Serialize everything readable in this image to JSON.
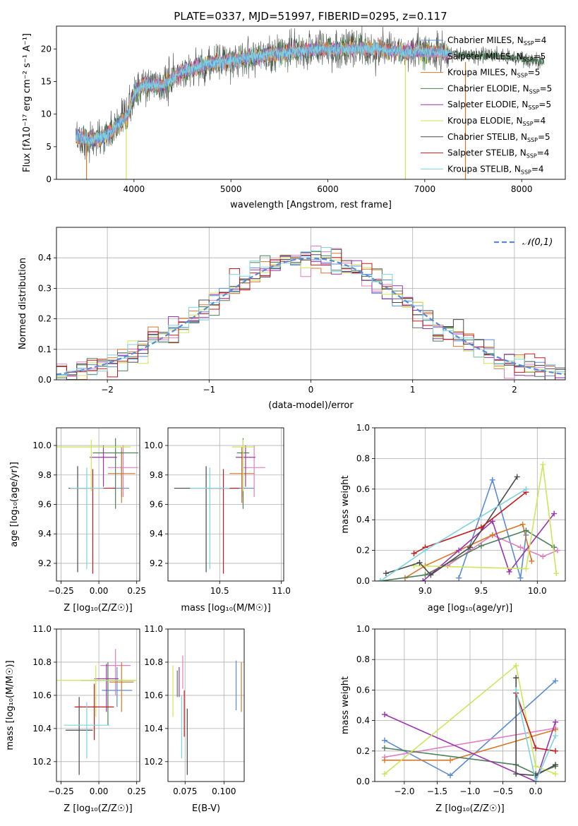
{
  "colors": {
    "chabrier_miles": "#5b8bd6",
    "salpeter_miles": "#e07fc0",
    "kroupa_miles": "#d9782a",
    "chabrier_elodie": "#4f7f58",
    "salpeter_elodie": "#9b34b0",
    "kroupa_elodie": "#cde65a",
    "chabrier_stelib": "#4a4a4a",
    "salpeter_stelib": "#c41a1a",
    "kroupa_stelib": "#7dd3de",
    "normal": "#5b8bd6",
    "grid": "#b0b0b0"
  },
  "chart_data": [
    {
      "id": "spectrum",
      "type": "line",
      "title": "PLATE=0337, MJD=51997, FIBERID=0295, z=0.117",
      "xlabel": "wavelength [Angstrom, rest frame]",
      "ylabel": "Flux [fλ10⁻¹⁷ erg cm⁻² s⁻¹ A⁻¹]",
      "xlim": [
        3200,
        8450
      ],
      "ylim": [
        0,
        23.5
      ],
      "xticks": [
        "4000",
        "5000",
        "6000",
        "7000",
        "8000"
      ],
      "yticks": [
        "0",
        "5",
        "10",
        "15",
        "20"
      ],
      "grid": false,
      "legend_position": "right",
      "legend": [
        {
          "base": "Chabrier MILES, N",
          "sub": "SSP",
          "tail": "=4",
          "color": "chabrier_miles"
        },
        {
          "base": "Salpeter MILES, N",
          "sub": "SSP",
          "tail": "=5",
          "color": "salpeter_miles"
        },
        {
          "base": "Kroupa MILES, N",
          "sub": "SSP",
          "tail": "=5",
          "color": "kroupa_miles"
        },
        {
          "base": "Chabrier ELODIE, N",
          "sub": "SSP",
          "tail": "=5",
          "color": "chabrier_elodie"
        },
        {
          "base": "Salpeter ELODIE, N",
          "sub": "SSP",
          "tail": "=5",
          "color": "salpeter_elodie"
        },
        {
          "base": "Kroupa ELODIE, N",
          "sub": "SSP",
          "tail": "=4",
          "color": "kroupa_elodie"
        },
        {
          "base": "Chabrier STELIB, N",
          "sub": "SSP",
          "tail": "=5",
          "color": "chabrier_stelib"
        },
        {
          "base": "Salpeter STELIB, N",
          "sub": "SSP",
          "tail": "=4",
          "color": "salpeter_stelib"
        },
        {
          "base": "Kroupa STELIB, N",
          "sub": "SSP",
          "tail": "=4",
          "color": "kroupa_stelib"
        }
      ],
      "data_range": {
        "wave_min": 3400,
        "wave_max": 8230
      },
      "continuum": {
        "wave": [
          3400,
          3550,
          3700,
          3850,
          3930,
          4000,
          4100,
          4300,
          4500,
          4700,
          4900,
          5100,
          5300,
          5600,
          5900,
          6200,
          6500,
          6800,
          7100,
          7400,
          7700,
          8000,
          8230
        ],
        "flux": [
          6.5,
          6.0,
          6.5,
          8.5,
          9.5,
          13.0,
          14.5,
          14.5,
          16.5,
          17.5,
          18.0,
          18.5,
          19.0,
          19.5,
          20.0,
          20.0,
          20.0,
          19.5,
          19.5,
          19.0,
          19.0,
          18.5,
          18.0
        ]
      },
      "spikes": [
        {
          "wave": 3510,
          "top": 5.5,
          "color": "kroupa_miles"
        },
        {
          "wave": 3920,
          "top": 9.0,
          "color": "kroupa_elodie"
        },
        {
          "wave": 6800,
          "top": 18.5,
          "color": "kroupa_elodie"
        },
        {
          "wave": 7420,
          "top": 18.0,
          "color": "kroupa_miles"
        }
      ]
    },
    {
      "id": "residuals",
      "type": "histogram",
      "xlabel": "(data-model)/error",
      "ylabel": "Normed distribution",
      "xlim": [
        -2.5,
        2.5
      ],
      "ylim": [
        0,
        0.5
      ],
      "xticks": [
        "−2",
        "−1",
        "0",
        "1",
        "2"
      ],
      "yticks": [
        "0.0",
        "0.1",
        "0.2",
        "0.3",
        "0.4"
      ],
      "grid": true,
      "bin_width": 0.1,
      "legend": [
        {
          "label": "𝒩(0,1)",
          "color": "normal",
          "dashed": true
        }
      ],
      "legend_position": "top-right"
    },
    {
      "id": "age_vs_z",
      "type": "errorbar",
      "xlabel": "Z [log₁₀(Z/Z☉)]",
      "ylabel": "age  [log₁₀(age/yr)]",
      "xlim": [
        -0.28,
        0.27
      ],
      "ylim": [
        9.08,
        10.12
      ],
      "xticks": [
        "−0.25",
        "0.00",
        "0.25"
      ],
      "yticks": [
        "9.2",
        "9.4",
        "9.6",
        "9.8",
        "10.0"
      ],
      "grid": true,
      "points": [
        {
          "x": 0.15,
          "y": 9.71,
          "xerr": 0.05,
          "yerr": [
            0.06,
            0.25
          ],
          "color": "chabrier_miles"
        },
        {
          "x": 0.16,
          "y": 9.85,
          "xerr": 0.1,
          "yerr": [
            0.2,
            0.15
          ],
          "color": "salpeter_miles"
        },
        {
          "x": 0.15,
          "y": 9.81,
          "xerr": 0.09,
          "yerr": [
            0.2,
            0.18
          ],
          "color": "kroupa_miles"
        },
        {
          "x": 0.11,
          "y": 9.95,
          "xerr": 0.15,
          "yerr": [
            0.38,
            0.1
          ],
          "color": "chabrier_elodie"
        },
        {
          "x": 0.03,
          "y": 9.92,
          "xerr": 0.09,
          "yerr": [
            0.2,
            0.08
          ],
          "color": "salpeter_elodie"
        },
        {
          "x": -0.05,
          "y": 9.99,
          "xerr": 0.26,
          "yerr": [
            0.3,
            0.05
          ],
          "color": "kroupa_elodie"
        },
        {
          "x": -0.14,
          "y": 9.71,
          "xerr": 0.06,
          "yerr": [
            0.57,
            0.15
          ],
          "color": "chabrier_stelib"
        },
        {
          "x": -0.04,
          "y": 9.71,
          "xerr": 0.15,
          "yerr": [
            0.58,
            0.13
          ],
          "color": "salpeter_stelib"
        },
        {
          "x": -0.08,
          "y": 9.71,
          "xerr": 0.11,
          "yerr": [
            0.55,
            0.14
          ],
          "color": "kroupa_stelib"
        }
      ]
    },
    {
      "id": "age_vs_mass",
      "type": "errorbar",
      "xlabel": "mass [log₁₀(M/M☉)]",
      "ylabel": "",
      "xlim": [
        10.08,
        11.02
      ],
      "ylim": [
        9.08,
        10.12
      ],
      "xticks": [
        "10.5",
        "11.0"
      ],
      "yticks": [
        "9.2",
        "9.4",
        "9.6",
        "9.8",
        "10.0"
      ],
      "grid": true,
      "points": [
        {
          "x": 10.68,
          "y": 9.71,
          "xerr": 0.1,
          "yerr": [
            0.06,
            0.25
          ],
          "color": "chabrier_miles"
        },
        {
          "x": 10.78,
          "y": 9.85,
          "xerr": 0.09,
          "yerr": [
            0.2,
            0.15
          ],
          "color": "salpeter_miles"
        },
        {
          "x": 10.68,
          "y": 9.81,
          "xerr": 0.1,
          "yerr": [
            0.2,
            0.18
          ],
          "color": "kroupa_miles"
        },
        {
          "x": 10.69,
          "y": 9.95,
          "xerr": 0.05,
          "yerr": [
            0.38,
            0.1
          ],
          "color": "chabrier_elodie"
        },
        {
          "x": 10.71,
          "y": 9.92,
          "xerr": 0.08,
          "yerr": [
            0.2,
            0.08
          ],
          "color": "salpeter_elodie"
        },
        {
          "x": 10.69,
          "y": 9.99,
          "xerr": 0.09,
          "yerr": [
            0.3,
            0.05
          ],
          "color": "kroupa_elodie"
        },
        {
          "x": 10.39,
          "y": 9.71,
          "xerr": 0.26,
          "yerr": [
            0.57,
            0.15
          ],
          "color": "chabrier_stelib"
        },
        {
          "x": 10.53,
          "y": 9.71,
          "xerr": 0.13,
          "yerr": [
            0.58,
            0.13
          ],
          "color": "salpeter_stelib"
        },
        {
          "x": 10.42,
          "y": 9.71,
          "xerr": 0.16,
          "yerr": [
            0.55,
            0.14
          ],
          "color": "kroupa_stelib"
        }
      ]
    },
    {
      "id": "weight_vs_age",
      "type": "line",
      "xlabel": "age  [log₁₀(age/yr)]",
      "ylabel": "mass weight",
      "xlim": [
        8.55,
        10.25
      ],
      "ylim": [
        0,
        1.0
      ],
      "xticks": [
        "9.0",
        "9.5",
        "10.0"
      ],
      "yticks": [
        "0.0",
        "0.2",
        "0.4",
        "0.6",
        "0.8",
        "1.0"
      ],
      "grid": true,
      "series": [
        {
          "color": "chabrier_miles",
          "x": [
            9.3,
            9.6,
            9.85,
            9.9
          ],
          "y": [
            0.02,
            0.66,
            0.02,
            0.3
          ]
        },
        {
          "color": "salpeter_miles",
          "x": [
            9.2,
            9.6,
            9.85,
            10.05,
            10.18
          ],
          "y": [
            0.1,
            0.3,
            0.22,
            0.16,
            0.2
          ]
        },
        {
          "color": "kroupa_miles",
          "x": [
            8.82,
            9.0,
            9.6,
            9.87,
            9.95
          ],
          "y": [
            0.02,
            0.1,
            0.3,
            0.37,
            0.13
          ]
        },
        {
          "color": "chabrier_elodie",
          "x": [
            8.6,
            9.0,
            9.5,
            9.9,
            10.15
          ],
          "y": [
            0.0,
            0.04,
            0.23,
            0.33,
            0.22
          ]
        },
        {
          "color": "salpeter_elodie",
          "x": [
            8.98,
            9.3,
            9.6,
            9.75,
            10.15
          ],
          "y": [
            0.0,
            0.2,
            0.39,
            0.06,
            0.44
          ]
        },
        {
          "color": "kroupa_elodie",
          "x": [
            8.9,
            9.9,
            10.05,
            10.17
          ],
          "y": [
            0.1,
            0.08,
            0.76,
            0.05
          ]
        },
        {
          "color": "chabrier_stelib",
          "x": [
            8.65,
            8.95,
            9.05,
            9.4,
            9.82
          ],
          "y": [
            0.05,
            0.12,
            0.04,
            0.22,
            0.68
          ]
        },
        {
          "color": "salpeter_stelib",
          "x": [
            8.9,
            9.0,
            9.5,
            9.9
          ],
          "y": [
            0.18,
            0.22,
            0.35,
            0.58
          ]
        },
        {
          "color": "kroupa_stelib",
          "x": [
            8.6,
            9.0,
            9.9
          ],
          "y": [
            0.0,
            0.2,
            0.6
          ]
        }
      ]
    },
    {
      "id": "mass_vs_z",
      "type": "errorbar",
      "xlabel": "Z [log₁₀(Z/Z☉)]",
      "ylabel": "mass [log₁₀(M/M☉)]",
      "xlim": [
        -0.28,
        0.27
      ],
      "ylim": [
        10.08,
        11.0
      ],
      "xticks": [
        "−0.25",
        "0.00",
        "0.25"
      ],
      "yticks": [
        "10.2",
        "10.4",
        "10.6",
        "10.8",
        "11.0"
      ],
      "grid": true,
      "points": [
        {
          "x": 0.12,
          "y": 10.63,
          "xerr": 0.1,
          "yerr": [
            0.1,
            0.14
          ],
          "color": "chabrier_miles"
        },
        {
          "x": 0.11,
          "y": 10.78,
          "xerr": 0.1,
          "yerr": [
            0.18,
            0.1
          ],
          "color": "salpeter_miles"
        },
        {
          "x": 0.15,
          "y": 10.68,
          "xerr": 0.08,
          "yerr": [
            0.18,
            0.12
          ],
          "color": "kroupa_miles"
        },
        {
          "x": 0.06,
          "y": 10.69,
          "xerr": 0.18,
          "yerr": [
            0.27,
            0.11
          ],
          "color": "chabrier_elodie"
        },
        {
          "x": 0.05,
          "y": 10.7,
          "xerr": 0.08,
          "yerr": [
            0.2,
            0.09
          ],
          "color": "salpeter_elodie"
        },
        {
          "x": -0.02,
          "y": 10.69,
          "xerr": 0.27,
          "yerr": [
            0.22,
            0.09
          ],
          "color": "kroupa_elodie"
        },
        {
          "x": -0.13,
          "y": 10.39,
          "xerr": 0.09,
          "yerr": [
            0.27,
            0.2
          ],
          "color": "chabrier_stelib"
        },
        {
          "x": -0.03,
          "y": 10.53,
          "xerr": 0.13,
          "yerr": [
            0.2,
            0.14
          ],
          "color": "salpeter_stelib"
        },
        {
          "x": -0.08,
          "y": 10.42,
          "xerr": 0.15,
          "yerr": [
            0.2,
            0.14
          ],
          "color": "kroupa_stelib"
        }
      ]
    },
    {
      "id": "mass_vs_ebv",
      "type": "errorbar",
      "xlabel": "E(B-V)",
      "ylabel": "",
      "xlim": [
        0.064,
        0.113
      ],
      "ylim": [
        10.08,
        11.0
      ],
      "xticks": [
        "0.075",
        "0.100"
      ],
      "yticks": [
        "10.2",
        "10.4",
        "10.6",
        "10.8",
        "11.0"
      ],
      "grid": true,
      "points": [
        {
          "x": 0.1078,
          "y": 10.63,
          "xerr": 0,
          "yerr": [
            0.12,
            0.18
          ],
          "color": "chabrier_miles"
        },
        {
          "x": 0.0735,
          "y": 10.78,
          "xerr": 0,
          "yerr": [
            0.14,
            0.06
          ],
          "color": "salpeter_miles"
        },
        {
          "x": 0.1112,
          "y": 10.68,
          "xerr": 0,
          "yerr": [
            0.18,
            0.12
          ],
          "color": "kroupa_miles"
        },
        {
          "x": 0.07,
          "y": 10.69,
          "xerr": 0,
          "yerr": [
            0.1,
            0.06
          ],
          "color": "chabrier_elodie"
        },
        {
          "x": 0.0712,
          "y": 10.7,
          "xerr": 0,
          "yerr": [
            0.11,
            0.07
          ],
          "color": "salpeter_elodie"
        },
        {
          "x": 0.0672,
          "y": 10.62,
          "xerr": 0,
          "yerr": [
            0.15,
            0.16
          ],
          "color": "kroupa_elodie"
        },
        {
          "x": 0.0764,
          "y": 10.39,
          "xerr": 0,
          "yerr": [
            0.27,
            0.13
          ],
          "color": "chabrier_stelib"
        },
        {
          "x": 0.0745,
          "y": 10.53,
          "xerr": 0,
          "yerr": [
            0.18,
            0.1
          ],
          "color": "salpeter_stelib"
        },
        {
          "x": 0.0728,
          "y": 10.42,
          "xerr": 0,
          "yerr": [
            0.2,
            0.18
          ],
          "color": "kroupa_stelib"
        }
      ]
    },
    {
      "id": "weight_vs_z",
      "type": "line",
      "xlabel": "Z [log₁₀(Z/Z☉)]",
      "ylabel": "mass weight",
      "xlim": [
        -2.45,
        0.45
      ],
      "ylim": [
        0,
        1.0
      ],
      "xticks": [
        "−2.0",
        "−1.5",
        "−1.0",
        "−0.5",
        "0.0"
      ],
      "yticks": [
        "0.0",
        "0.2",
        "0.4",
        "0.6",
        "0.8",
        "1.0"
      ],
      "grid": true,
      "series": [
        {
          "color": "chabrier_miles",
          "x": [
            -2.3,
            -1.3,
            0.3
          ],
          "y": [
            0.27,
            0.04,
            0.66
          ]
        },
        {
          "color": "salpeter_miles",
          "x": [
            -2.3,
            0.3
          ],
          "y": [
            0.16,
            0.35
          ]
        },
        {
          "color": "kroupa_miles",
          "x": [
            -2.3,
            -1.3,
            0.3
          ],
          "y": [
            0.14,
            0.14,
            0.34
          ]
        },
        {
          "color": "chabrier_elodie",
          "x": [
            -2.3,
            -0.3,
            0.0,
            0.3
          ],
          "y": [
            0.22,
            0.11,
            0.05,
            0.1
          ]
        },
        {
          "color": "salpeter_elodie",
          "x": [
            -2.3,
            0.0,
            0.3
          ],
          "y": [
            0.44,
            0.0,
            0.39
          ]
        },
        {
          "color": "kroupa_elodie",
          "x": [
            -2.3,
            -0.3,
            0.0,
            0.3
          ],
          "y": [
            0.05,
            0.76,
            0.1,
            0.05
          ]
        },
        {
          "color": "chabrier_stelib",
          "x": [
            -0.3,
            -0.3,
            0.0,
            0.3
          ],
          "y": [
            0.68,
            0.05,
            0.04,
            0.11
          ]
        },
        {
          "color": "salpeter_stelib",
          "x": [
            -0.3,
            0.0,
            0.3
          ],
          "y": [
            0.58,
            0.22,
            0.2
          ]
        },
        {
          "color": "kroupa_stelib",
          "x": [
            -0.3,
            0.0,
            0.3
          ],
          "y": [
            0.6,
            0.0,
            0.3
          ]
        }
      ]
    }
  ]
}
